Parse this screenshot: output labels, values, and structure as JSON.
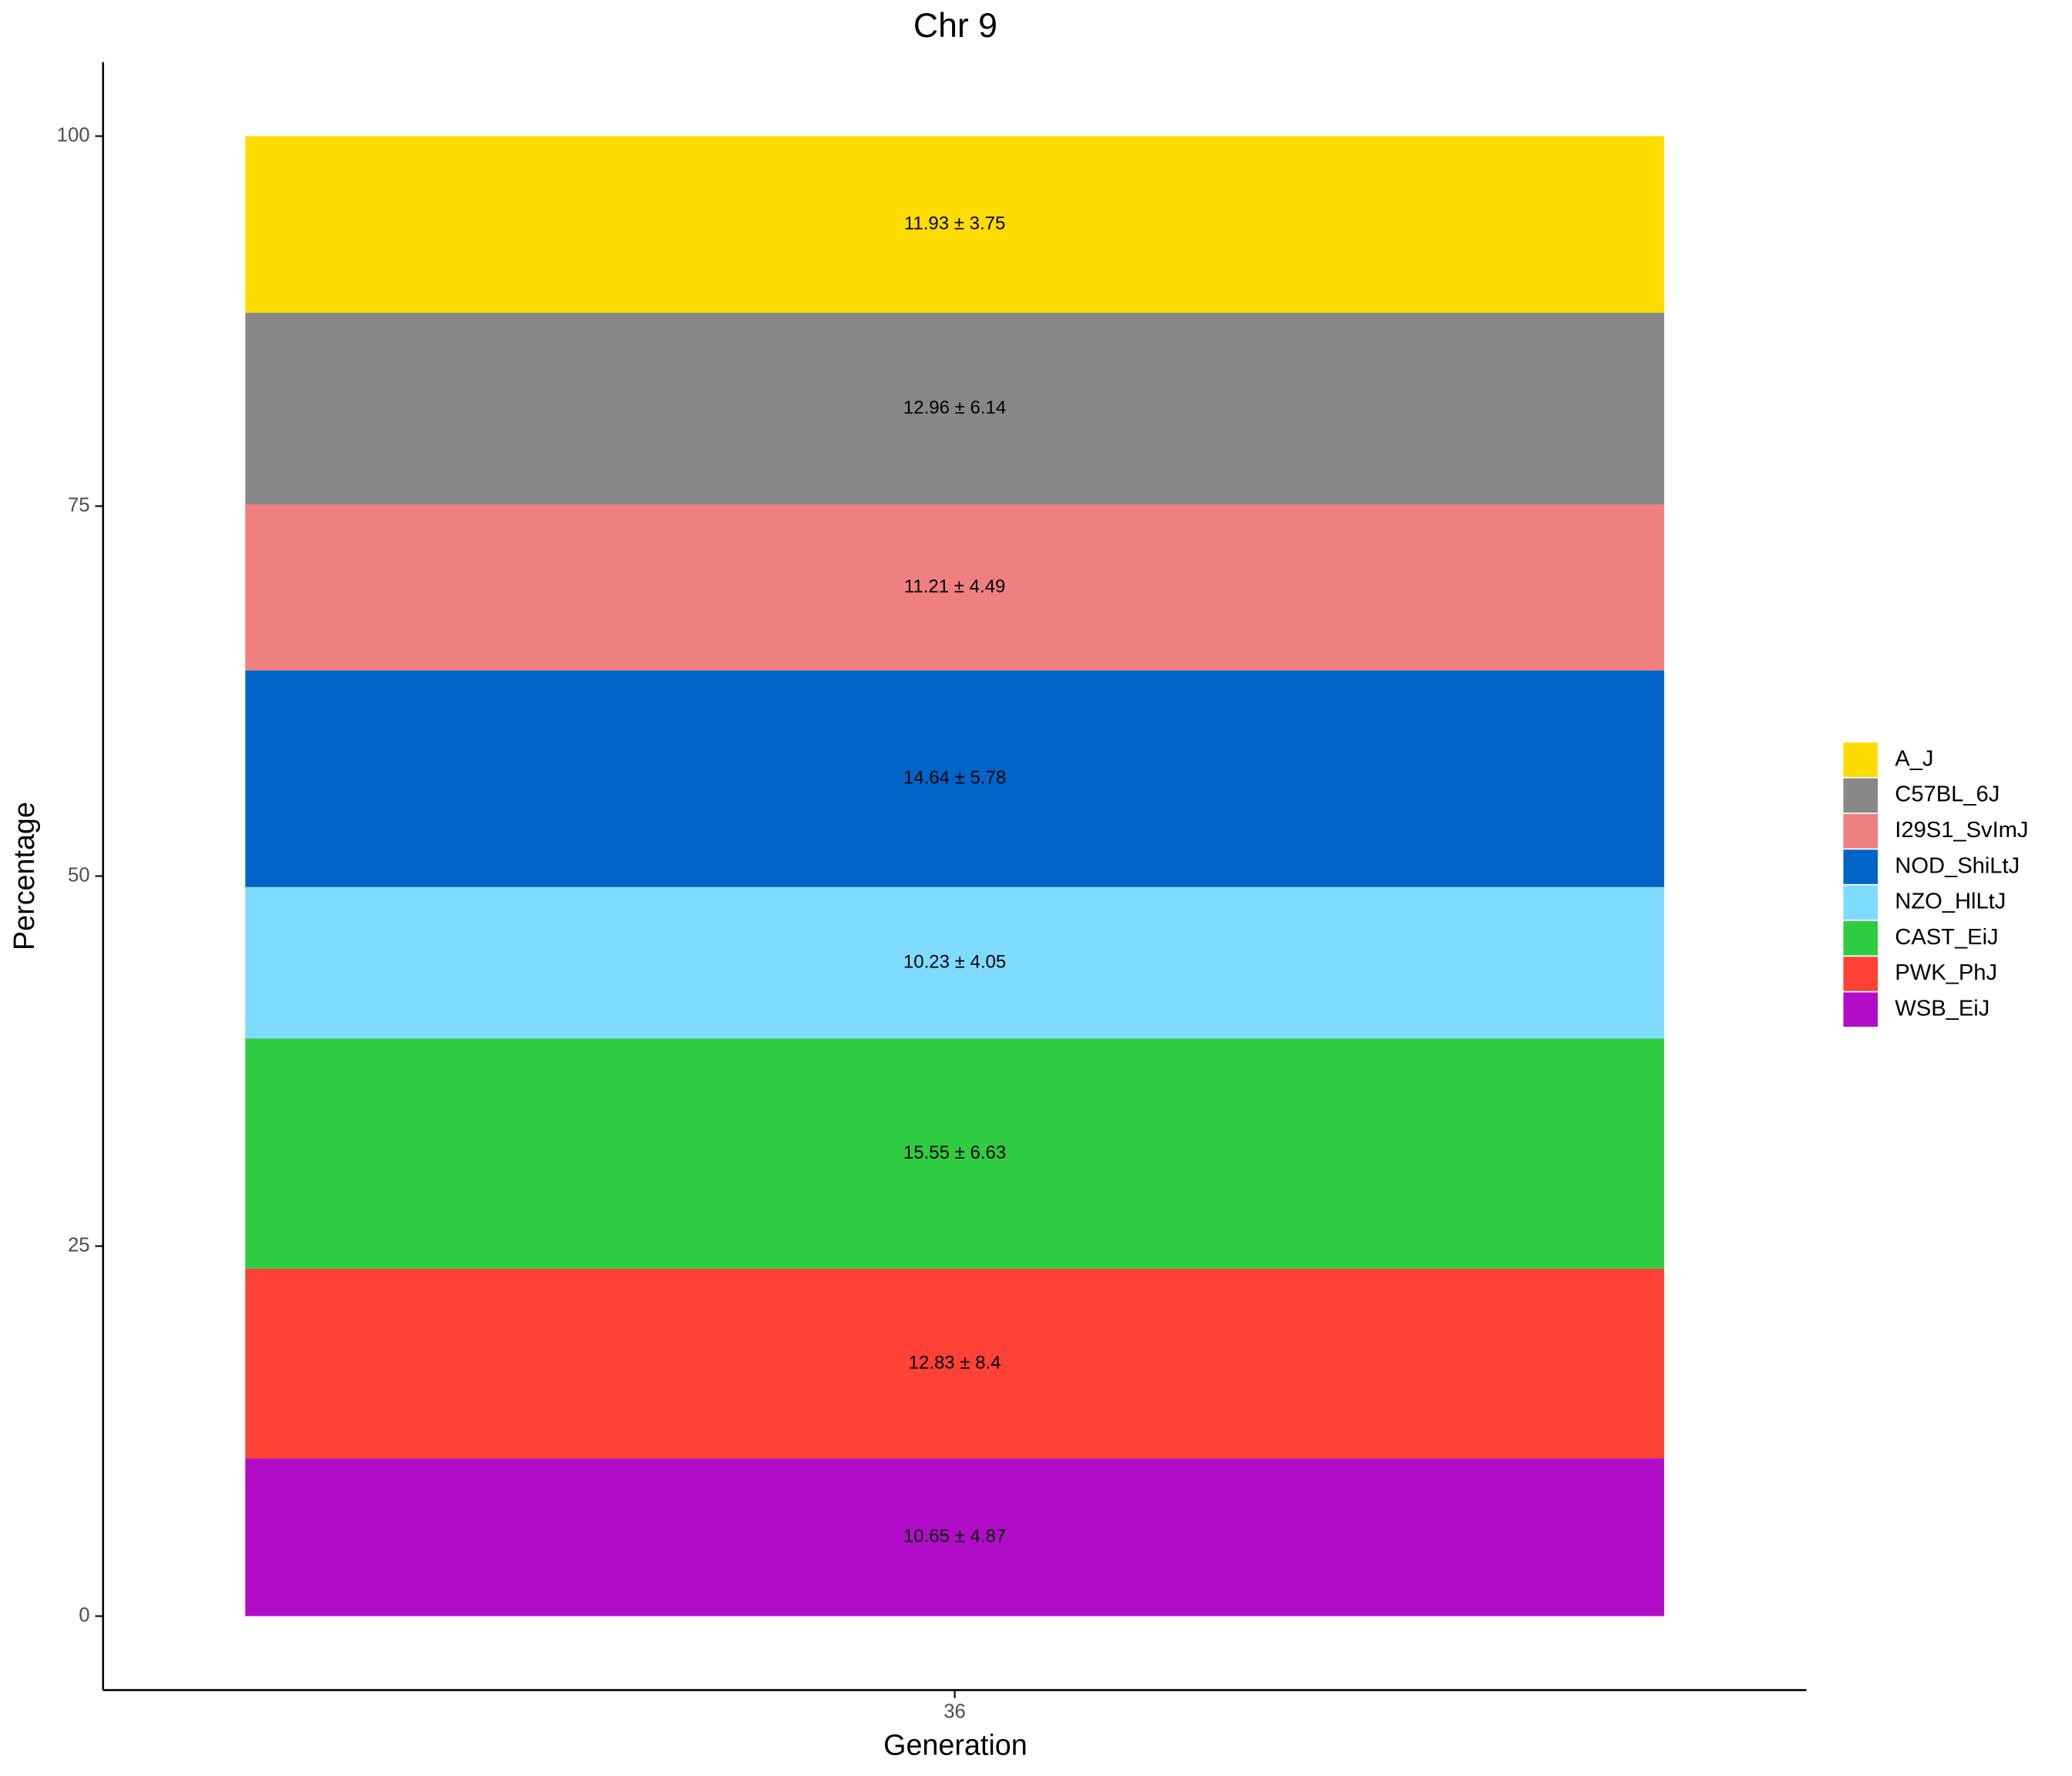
{
  "chart_data": {
    "type": "stacked_bar",
    "title": "Chr 9",
    "x_label": "Generation",
    "y_label": "Percentage",
    "categories": [
      "36"
    ],
    "series": [
      {
        "name": "A_J",
        "color": "#FFDC00",
        "values": [
          11.93
        ],
        "value_labels": [
          "11.93 ± 3.75"
        ]
      },
      {
        "name": "C57BL_6J",
        "color": "#888888",
        "values": [
          12.96
        ],
        "value_labels": [
          "12.96 ± 6.14"
        ]
      },
      {
        "name": "I29S1_SvImJ",
        "color": "#F08080",
        "values": [
          11.21
        ],
        "value_labels": [
          "11.21 ± 4.49"
        ]
      },
      {
        "name": "NOD_ShiLtJ",
        "color": "#0064C9",
        "values": [
          14.64
        ],
        "value_labels": [
          "14.64 ± 5.78"
        ]
      },
      {
        "name": "NZO_HlLtJ",
        "color": "#7FDBFF",
        "values": [
          10.23
        ],
        "value_labels": [
          "10.23 ± 4.05"
        ]
      },
      {
        "name": "CAST_EiJ",
        "color": "#2ECC40",
        "values": [
          15.55
        ],
        "value_labels": [
          "15.55 ± 6.63"
        ]
      },
      {
        "name": "PWK_PhJ",
        "color": "#FF4136",
        "values": [
          12.83
        ],
        "value_labels": [
          "12.83 ± 8.4"
        ]
      },
      {
        "name": "WSB_EiJ",
        "color": "#B10DC9",
        "values": [
          10.65
        ],
        "value_labels": [
          "10.65 ± 4.87"
        ]
      }
    ],
    "ylim": [
      -5,
      105
    ],
    "yticks": [
      0,
      25,
      50,
      75,
      100
    ],
    "legend": "right"
  }
}
